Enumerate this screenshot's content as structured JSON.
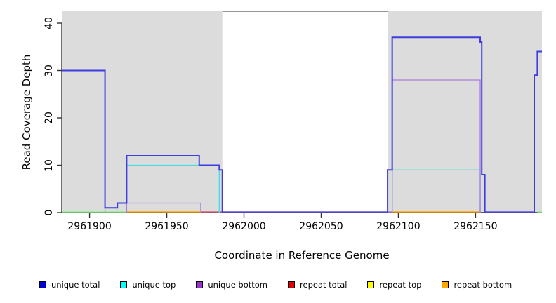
{
  "figure": {
    "y_axis_title": "Read Coverage Depth",
    "x_axis_title": "Coordinate in Reference Genome"
  },
  "axes": {
    "x": {
      "label": "Coordinate in Reference Genome",
      "domain": [
        2961882,
        2962193
      ],
      "ticks": [
        2961900,
        2961950,
        2962000,
        2962050,
        2962100,
        2962150
      ]
    },
    "y": {
      "label": "Read Coverage Depth",
      "domain": [
        0,
        42.7
      ],
      "ticks": [
        0,
        10,
        20,
        30,
        40
      ]
    }
  },
  "chart_data": {
    "type": "line",
    "subtype": "step-coverage",
    "x_units": "genome coordinate",
    "y_units": "read coverage depth",
    "shaded_regions": [
      {
        "start": 2961882,
        "end": 2961986,
        "color": "#dcdcdc"
      },
      {
        "start": 2962093,
        "end": 2962193,
        "color": "#dcdcdc"
      }
    ],
    "top_border_span": {
      "start": 2961986,
      "end": 2962093,
      "color": "#555555"
    },
    "series": [
      {
        "name": "repeat total",
        "line_color": "#e00000",
        "steps": [
          [
            2961882,
            2962193,
            0
          ]
        ]
      },
      {
        "name": "repeat top",
        "line_color": "#ffff00",
        "steps": [
          [
            2961882,
            2962193,
            0
          ]
        ]
      },
      {
        "name": "repeat bottom",
        "line_color": "#ffa500",
        "steps": [
          [
            2961882,
            2962193,
            0
          ]
        ]
      },
      {
        "name": "unique top",
        "line_color": "#40e0e0",
        "steps": [
          [
            2961882,
            2961924,
            0
          ],
          [
            2961924,
            2961984,
            10
          ],
          [
            2961984,
            2962096,
            0
          ],
          [
            2962096,
            2962153,
            9
          ],
          [
            2962153,
            2962193,
            0
          ]
        ]
      },
      {
        "name": "unique bottom",
        "line_color": "#a77cdc",
        "steps": [
          [
            2961882,
            2961910,
            30
          ],
          [
            2961910,
            2961924,
            0
          ],
          [
            2961924,
            2961972,
            2
          ],
          [
            2961972,
            2962096,
            0
          ],
          [
            2962096,
            2962153,
            28
          ],
          [
            2962153,
            2962193,
            0
          ]
        ]
      },
      {
        "name": "unique total",
        "line_color": "#3d3de0",
        "steps": [
          [
            2961882,
            2961910,
            30
          ],
          [
            2961910,
            2961918,
            1
          ],
          [
            2961918,
            2961924,
            2
          ],
          [
            2961924,
            2961971,
            12
          ],
          [
            2961971,
            2961984,
            10
          ],
          [
            2961984,
            2961986,
            9
          ],
          [
            2961986,
            2962093,
            0
          ],
          [
            2962093,
            2962096,
            9
          ],
          [
            2962096,
            2962153,
            37
          ],
          [
            2962153,
            2962154,
            36
          ],
          [
            2962154,
            2962156,
            8
          ],
          [
            2962156,
            2962188,
            0
          ],
          [
            2962188,
            2962190,
            29
          ],
          [
            2962190,
            2962193,
            34
          ]
        ]
      }
    ],
    "baseline_zero_segments": [
      {
        "start": 2961882,
        "end": 2961924,
        "color": "#90ee90"
      },
      {
        "start": 2961924,
        "end": 2961972,
        "color": "#ffa500"
      },
      {
        "start": 2961972,
        "end": 2961986,
        "color": "#d5607e"
      },
      {
        "start": 2961986,
        "end": 2962093,
        "color": "#5a50e6"
      },
      {
        "start": 2962093,
        "end": 2962096,
        "color": "#a77cdc"
      },
      {
        "start": 2962096,
        "end": 2962153,
        "color": "#ffa500"
      },
      {
        "start": 2962156,
        "end": 2962188,
        "color": "#5a50e6"
      },
      {
        "start": 2962190,
        "end": 2962193,
        "color": "#90ee90"
      }
    ]
  },
  "legend": {
    "items": [
      {
        "label": "unique total",
        "color": "#0000cc"
      },
      {
        "label": "unique top",
        "color": "#00ffff"
      },
      {
        "label": "unique bottom",
        "color": "#9932cc"
      },
      {
        "label": "repeat total",
        "color": "#e00000"
      },
      {
        "label": "repeat top",
        "color": "#ffff00"
      },
      {
        "label": "repeat bottom",
        "color": "#ffa500"
      }
    ]
  }
}
